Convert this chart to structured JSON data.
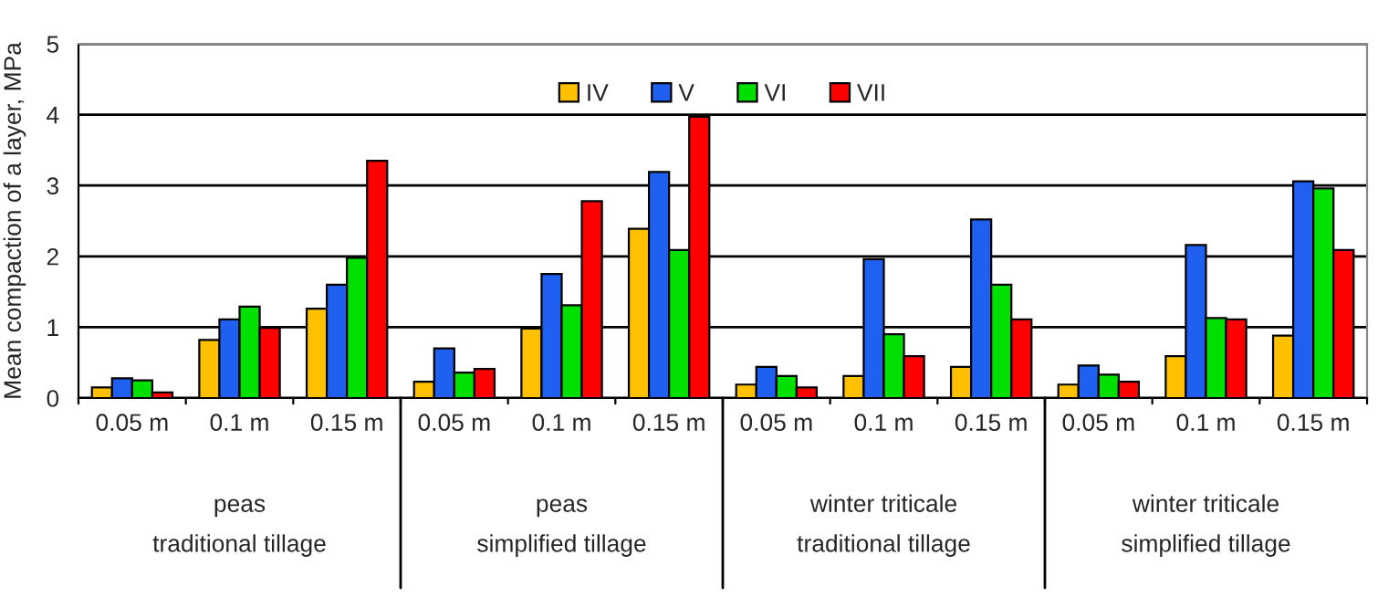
{
  "chart_data": {
    "type": "bar",
    "ylabel": "Mean compaction of a layer, MPa",
    "categories": [
      "0.05 m",
      "0.1 m",
      "0.15 m",
      "0.05 m",
      "0.1 m",
      "0.15 m",
      "0.05 m",
      "0.1 m",
      "0.15 m",
      "0.05 m",
      "0.1 m",
      "0.15 m"
    ],
    "series": [
      {
        "name": "IV",
        "color": "#ffc000",
        "values": [
          0.15,
          0.82,
          1.26,
          0.23,
          0.98,
          2.39,
          0.19,
          0.31,
          0.44,
          0.19,
          0.59,
          0.88
        ]
      },
      {
        "name": "V",
        "color": "#2060f0",
        "values": [
          0.28,
          1.11,
          1.6,
          0.7,
          1.75,
          3.19,
          0.44,
          1.96,
          2.52,
          0.46,
          2.16,
          3.06
        ]
      },
      {
        "name": "VI",
        "color": "#00e000",
        "values": [
          0.25,
          1.29,
          1.98,
          0.36,
          1.31,
          2.09,
          0.31,
          0.9,
          1.6,
          0.33,
          1.13,
          2.96
        ]
      },
      {
        "name": "VII",
        "color": "#ff0000",
        "values": [
          0.08,
          0.99,
          3.35,
          0.41,
          2.78,
          3.97,
          0.15,
          0.59,
          1.11,
          0.23,
          1.11,
          2.09
        ]
      }
    ],
    "annotations": [
      "peas\ntraditional tillage",
      "peas\nsimplified tillage",
      "winter triticale\ntraditional tillage",
      "winter triticale\nsimplified tillage"
    ],
    "ylim": [
      0,
      5
    ],
    "yticks": [
      0,
      1,
      2,
      3,
      4,
      5
    ],
    "grid": "y",
    "legend": "top"
  }
}
